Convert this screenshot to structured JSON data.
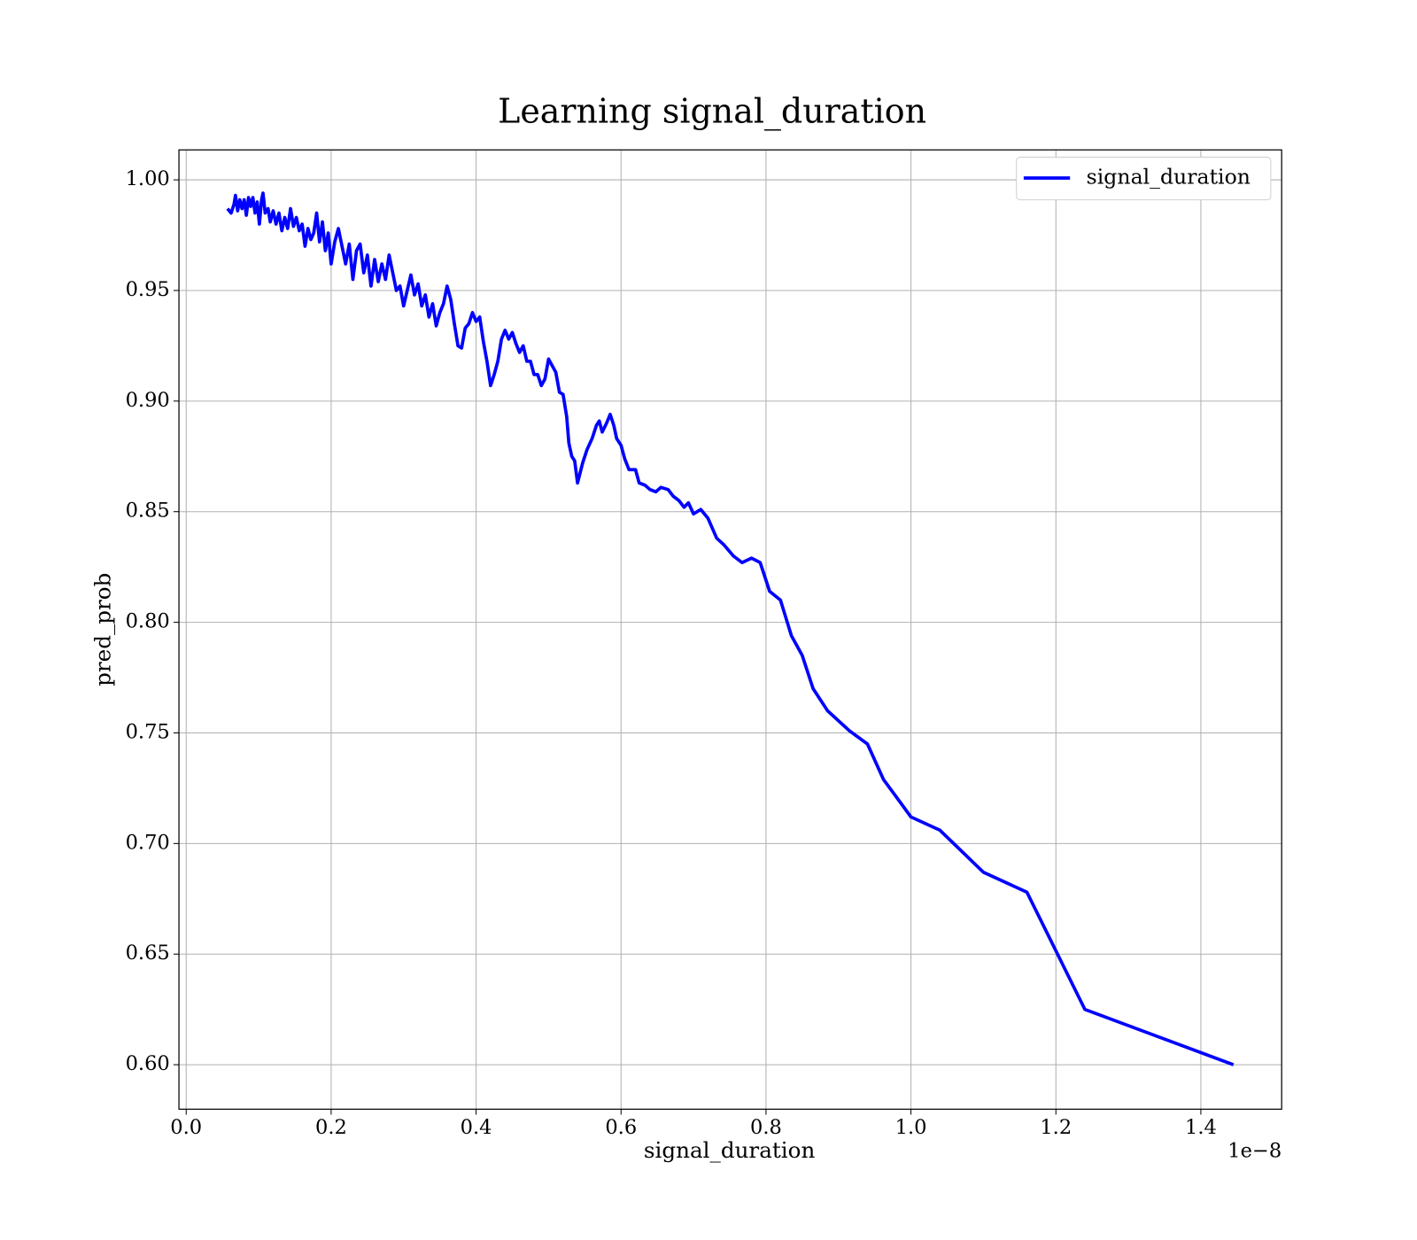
{
  "chart_data": {
    "type": "line",
    "title": "Learning signal_duration",
    "xlabel": "signal_duration",
    "ylabel": "pred_prob",
    "x_offset_label": "1e−8",
    "xlim": [
      -0.01,
      1.5115
    ],
    "ylim": [
      0.5799,
      1.01355
    ],
    "xticks": [
      {
        "value": 0,
        "label": "0.0"
      },
      0.2,
      0.4,
      0.6,
      0.8,
      {
        "value": 1,
        "label": "1.0"
      },
      1.2,
      1.4
    ],
    "yticks": [
      {
        "value": 0.6,
        "label": "0.60"
      },
      0.65,
      {
        "value": 0.7,
        "label": "0.70"
      },
      0.75,
      {
        "value": 0.8,
        "label": "0.80"
      },
      0.85,
      {
        "value": 0.9,
        "label": "0.90"
      },
      0.95,
      {
        "value": 1,
        "label": "1.00"
      }
    ],
    "grid": true,
    "legend": "upper right",
    "x": [
      0.057,
      0.062,
      0.066,
      0.068,
      0.071,
      0.074,
      0.077,
      0.08,
      0.083,
      0.086,
      0.089,
      0.092,
      0.095,
      0.098,
      0.101,
      0.104,
      0.106,
      0.109,
      0.113,
      0.116,
      0.12,
      0.124,
      0.128,
      0.132,
      0.136,
      0.14,
      0.144,
      0.148,
      0.152,
      0.156,
      0.16,
      0.164,
      0.168,
      0.172,
      0.176,
      0.18,
      0.184,
      0.188,
      0.192,
      0.196,
      0.2,
      0.205,
      0.21,
      0.215,
      0.22,
      0.225,
      0.23,
      0.235,
      0.24,
      0.245,
      0.25,
      0.255,
      0.26,
      0.265,
      0.27,
      0.275,
      0.28,
      0.285,
      0.29,
      0.295,
      0.3,
      0.305,
      0.31,
      0.315,
      0.32,
      0.325,
      0.33,
      0.335,
      0.34,
      0.345,
      0.35,
      0.355,
      0.36,
      0.365,
      0.37,
      0.375,
      0.38,
      0.385,
      0.39,
      0.395,
      0.4,
      0.405,
      0.41,
      0.415,
      0.42,
      0.425,
      0.43,
      0.435,
      0.44,
      0.445,
      0.45,
      0.455,
      0.46,
      0.465,
      0.47,
      0.475,
      0.48,
      0.485,
      0.49,
      0.495,
      0.5,
      0.505,
      0.51,
      0.515,
      0.52,
      0.525,
      0.528,
      0.532,
      0.536,
      0.54,
      0.547,
      0.553,
      0.56,
      0.566,
      0.57,
      0.574,
      0.58,
      0.585,
      0.59,
      0.594,
      0.6,
      0.605,
      0.611,
      0.62,
      0.625,
      0.633,
      0.64,
      0.648,
      0.655,
      0.665,
      0.672,
      0.68,
      0.687,
      0.693,
      0.7,
      0.71,
      0.72,
      0.732,
      0.742,
      0.755,
      0.767,
      0.78,
      0.792,
      0.805,
      0.82,
      0.835,
      0.85,
      0.865,
      0.885,
      0.915,
      0.94,
      0.962,
      1.0,
      1.04,
      1.1,
      1.16,
      1.24,
      1.445
    ],
    "series": [
      {
        "name": "signal_duration",
        "color": "#0000ff",
        "values": [
          0.987,
          0.985,
          0.989,
          0.993,
          0.986,
          0.991,
          0.987,
          0.991,
          0.984,
          0.992,
          0.988,
          0.992,
          0.985,
          0.99,
          0.98,
          0.991,
          0.994,
          0.985,
          0.987,
          0.981,
          0.986,
          0.98,
          0.985,
          0.977,
          0.983,
          0.978,
          0.987,
          0.979,
          0.983,
          0.977,
          0.98,
          0.97,
          0.978,
          0.973,
          0.976,
          0.985,
          0.972,
          0.981,
          0.968,
          0.976,
          0.962,
          0.972,
          0.978,
          0.97,
          0.962,
          0.971,
          0.955,
          0.968,
          0.971,
          0.958,
          0.966,
          0.952,
          0.964,
          0.954,
          0.962,
          0.955,
          0.966,
          0.958,
          0.95,
          0.952,
          0.943,
          0.95,
          0.957,
          0.948,
          0.953,
          0.943,
          0.948,
          0.938,
          0.944,
          0.934,
          0.94,
          0.944,
          0.952,
          0.946,
          0.935,
          0.925,
          0.924,
          0.933,
          0.935,
          0.94,
          0.936,
          0.938,
          0.927,
          0.918,
          0.907,
          0.912,
          0.918,
          0.928,
          0.932,
          0.928,
          0.931,
          0.926,
          0.922,
          0.925,
          0.918,
          0.918,
          0.912,
          0.912,
          0.907,
          0.91,
          0.919,
          0.916,
          0.913,
          0.904,
          0.903,
          0.893,
          0.881,
          0.875,
          0.873,
          0.863,
          0.872,
          0.878,
          0.883,
          0.889,
          0.891,
          0.886,
          0.89,
          0.894,
          0.889,
          0.883,
          0.88,
          0.874,
          0.869,
          0.869,
          0.863,
          0.862,
          0.86,
          0.859,
          0.861,
          0.86,
          0.857,
          0.855,
          0.852,
          0.854,
          0.849,
          0.851,
          0.847,
          0.838,
          0.835,
          0.83,
          0.827,
          0.829,
          0.827,
          0.814,
          0.81,
          0.794,
          0.785,
          0.77,
          0.76,
          0.751,
          0.745,
          0.729,
          0.712,
          0.706,
          0.687,
          0.678,
          0.625,
          0.6
        ]
      }
    ]
  }
}
